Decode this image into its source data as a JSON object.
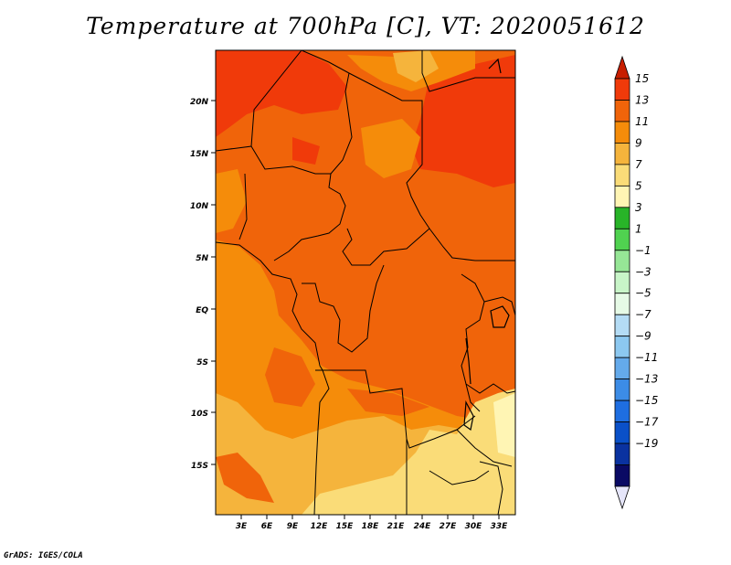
{
  "title": "Temperature at 700hPa [C], VT: 2020051612",
  "credit": "GrADS: IGES/COLA",
  "map": {
    "lat_ticks": [
      "20N",
      "15N",
      "10N",
      "5N",
      "EQ",
      "5S",
      "10S",
      "15S"
    ],
    "lon_ticks": [
      "3E",
      "6E",
      "9E",
      "12E",
      "15E",
      "18E",
      "21E",
      "24E",
      "27E",
      "30E",
      "33E"
    ]
  },
  "colorbar": {
    "labels": [
      "15",
      "13",
      "11",
      "9",
      "7",
      "5",
      "3",
      "1",
      "−1",
      "−3",
      "−5",
      "−7",
      "−9",
      "−11",
      "−13",
      "−15",
      "−17",
      "−19"
    ],
    "colors": [
      "#c81e00",
      "#f03a0a",
      "#f0640a",
      "#f58c0a",
      "#f5b43c",
      "#fadc78",
      "#fff5b4",
      "#28b428",
      "#50d250",
      "#96e696",
      "#c8f5c8",
      "#e6fae6",
      "#b4dcf5",
      "#8cc8f0",
      "#64aaeb",
      "#3c8ce6",
      "#1e6ee1",
      "#0a50c8",
      "#0a32a0",
      "#0a0a64",
      "#e6e6fa"
    ]
  }
}
